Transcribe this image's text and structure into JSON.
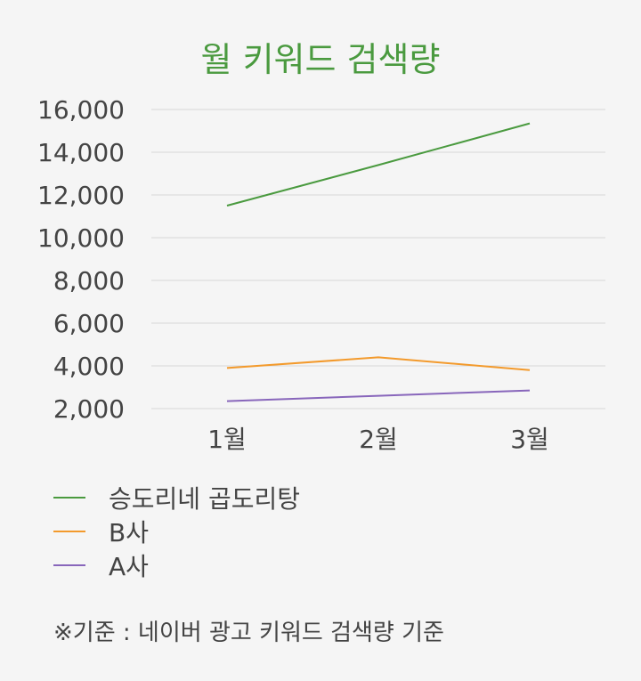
{
  "chart_data": {
    "type": "line",
    "title": "월 키워드 검색량",
    "categories": [
      "1월",
      "2월",
      "3월"
    ],
    "y_ticks": [
      "16,000",
      "14,000",
      "12,000",
      "10,000",
      "8,000",
      "6,000",
      "4,000",
      "2,000"
    ],
    "ylim": [
      2000,
      16000
    ],
    "grid": true,
    "legend_position": "bottom-left",
    "series": [
      {
        "name": "승도리네 곱도리탕",
        "values": [
          11500,
          13400,
          15350
        ],
        "color": "#4a9a3f"
      },
      {
        "name": "B사",
        "values": [
          3900,
          4400,
          3800
        ],
        "color": "#f39a2c"
      },
      {
        "name": "A사",
        "values": [
          2350,
          2600,
          2850
        ],
        "color": "#8866bb"
      }
    ]
  },
  "footnote": "※기준 : 네이버 광고 키워드 검색량 기준"
}
